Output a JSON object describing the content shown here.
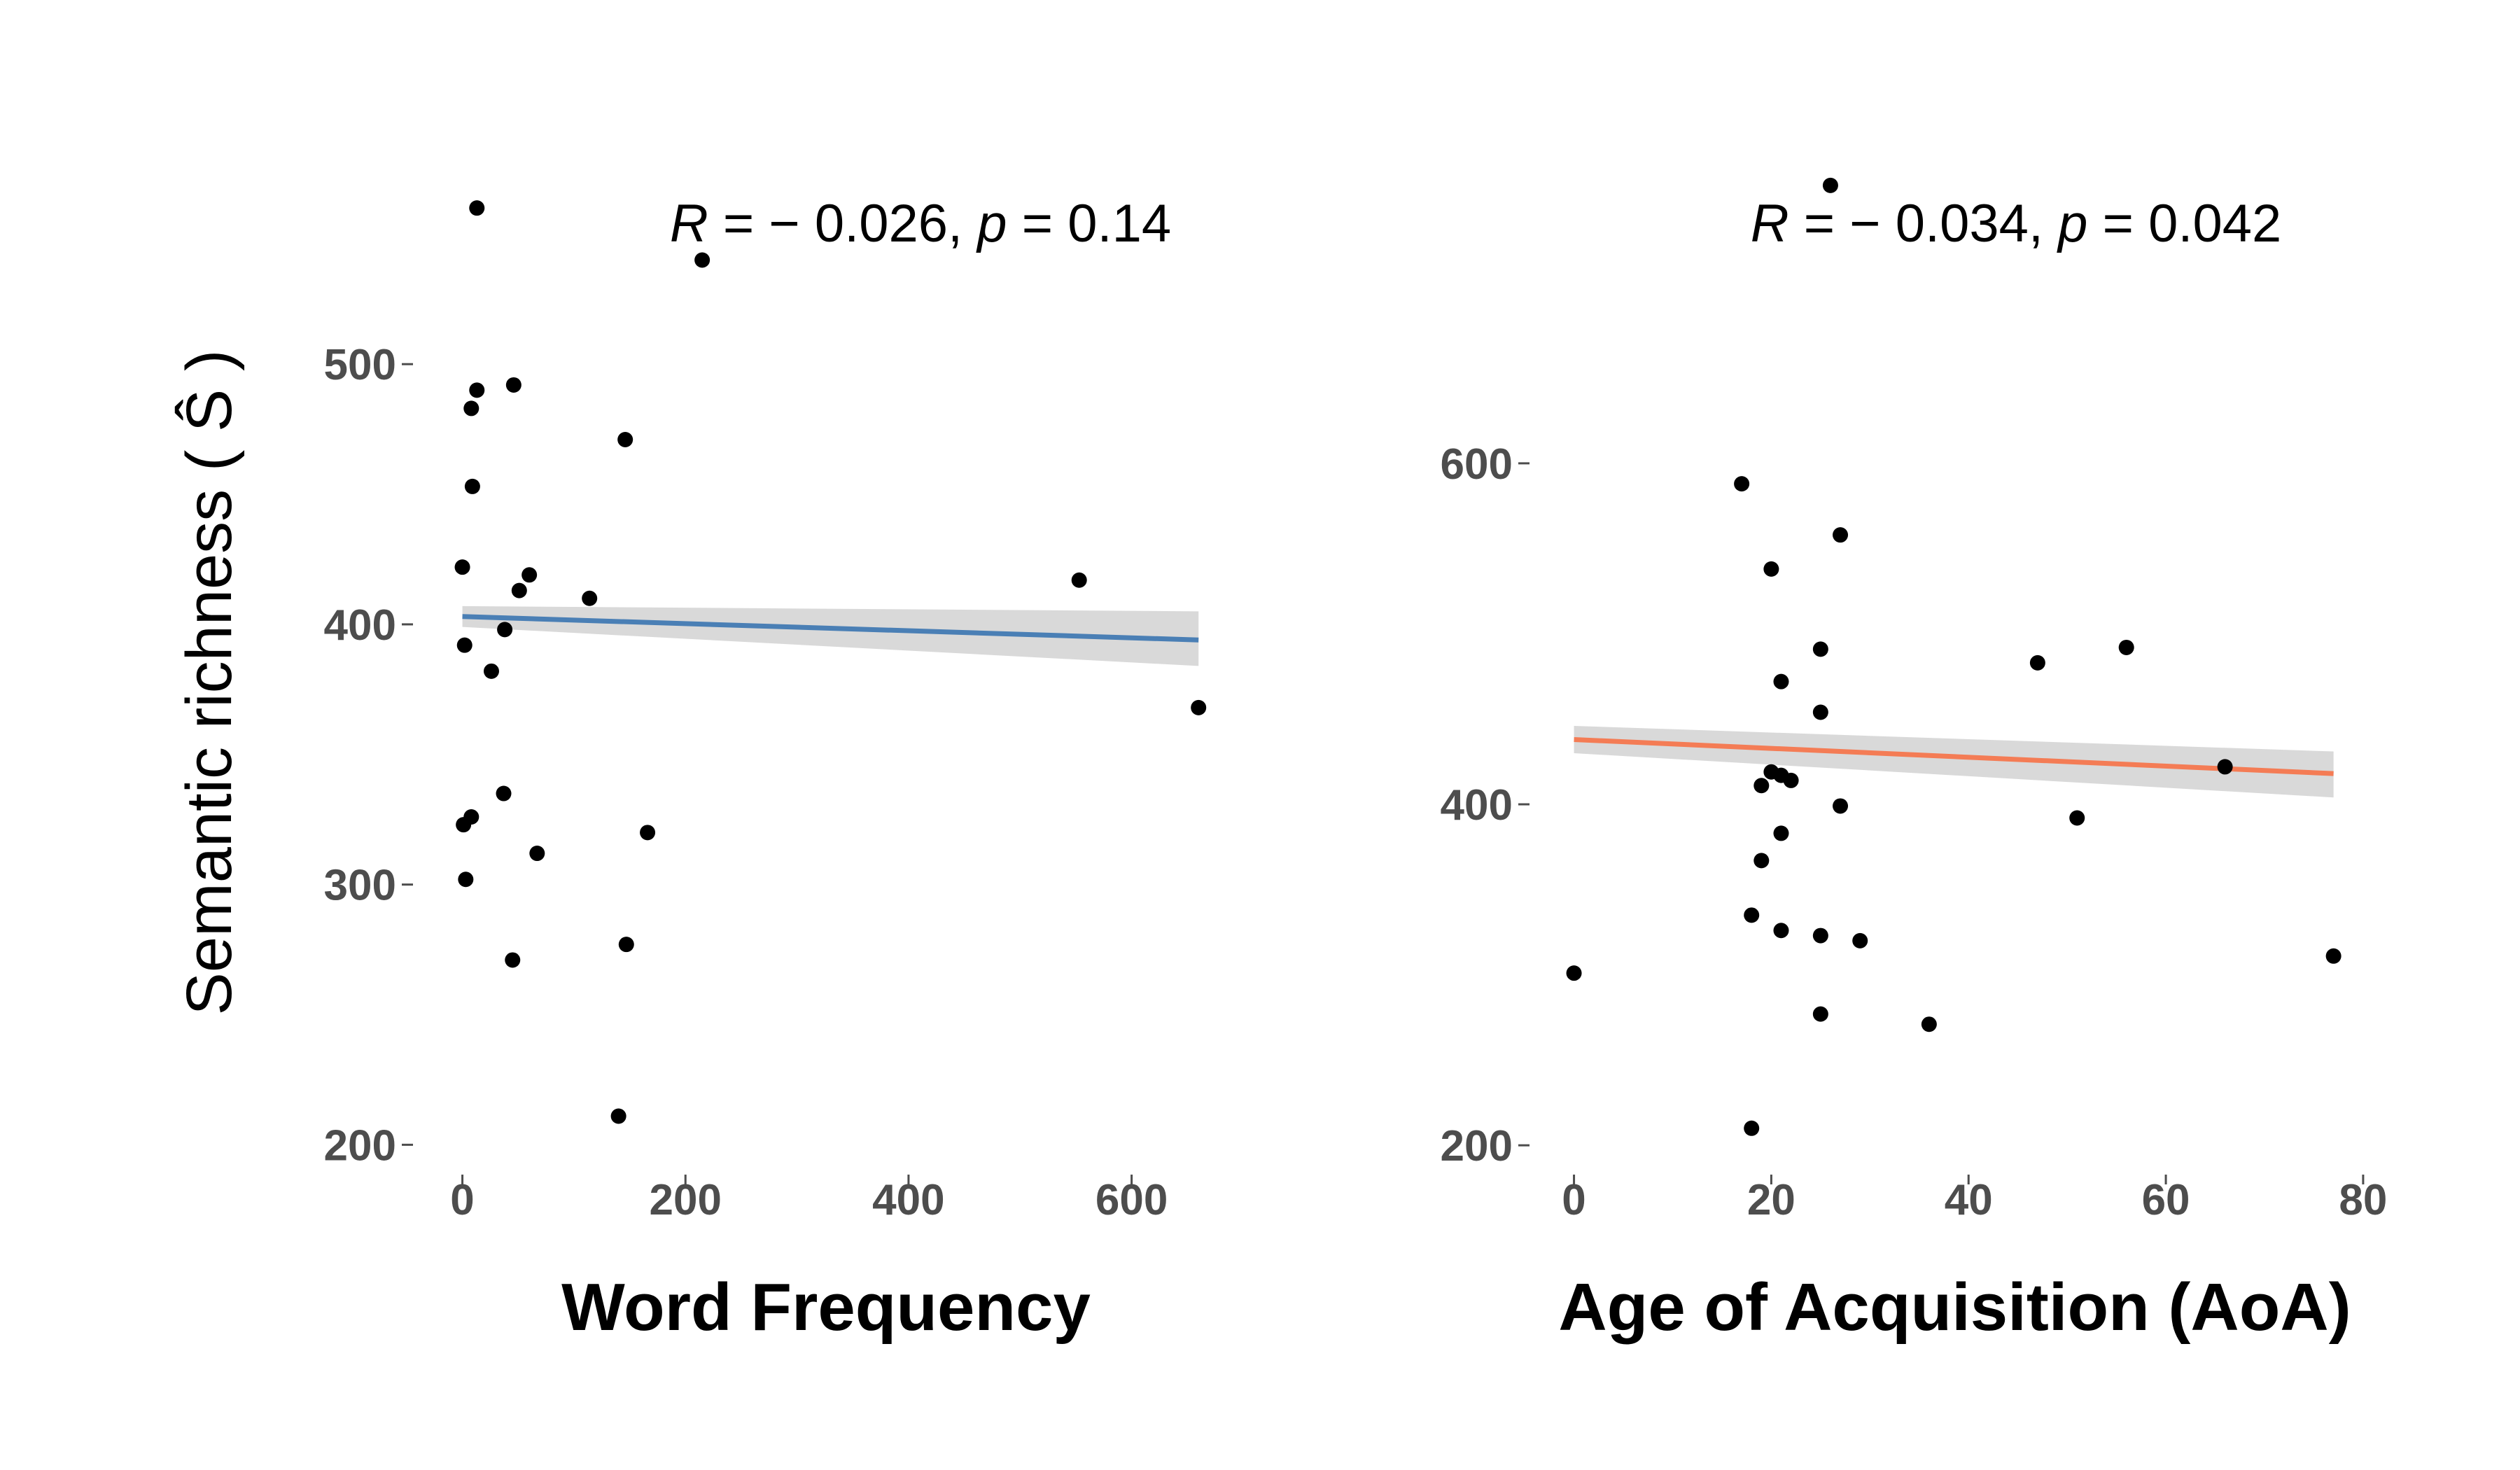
{
  "figure": {
    "ylabel": "Semantic richness ( Ŝ )"
  },
  "chart_data": [
    {
      "type": "scatter",
      "title": "",
      "xlabel": "Word Frequency",
      "ylabel": "Semantic richness ( Ŝ )",
      "xlim": [
        -38,
        690
      ],
      "ylim": [
        188,
        570
      ],
      "xticks": [
        0,
        200,
        400,
        600
      ],
      "yticks": [
        200,
        300,
        400,
        500
      ],
      "grid": false,
      "stat": {
        "r_label": "R",
        "r_value": "= − 0.026,",
        "p_label": "p",
        "p_value": "= 0.14"
      },
      "fit": {
        "x0": 0,
        "x1": 660,
        "y0": 403,
        "y1": 394,
        "ci_lo0": 399,
        "ci_hi0": 407,
        "ci_lo1": 384,
        "ci_hi1": 405,
        "color": "#4a7fb5"
      },
      "points": [
        {
          "x": 13,
          "y": 560
        },
        {
          "x": 215,
          "y": 540
        },
        {
          "x": 13,
          "y": 490
        },
        {
          "x": 46,
          "y": 492
        },
        {
          "x": 8,
          "y": 483
        },
        {
          "x": 146,
          "y": 471
        },
        {
          "x": 9,
          "y": 453
        },
        {
          "x": 0,
          "y": 422
        },
        {
          "x": 60,
          "y": 419
        },
        {
          "x": 51,
          "y": 413
        },
        {
          "x": 114,
          "y": 410
        },
        {
          "x": 553,
          "y": 417
        },
        {
          "x": 38,
          "y": 398
        },
        {
          "x": 2,
          "y": 392
        },
        {
          "x": 26,
          "y": 382
        },
        {
          "x": 660,
          "y": 368
        },
        {
          "x": 37,
          "y": 335
        },
        {
          "x": 8,
          "y": 326
        },
        {
          "x": 1,
          "y": 323
        },
        {
          "x": 166,
          "y": 320
        },
        {
          "x": 67,
          "y": 312
        },
        {
          "x": 3,
          "y": 302
        },
        {
          "x": 147,
          "y": 277
        },
        {
          "x": 45,
          "y": 271
        },
        {
          "x": 140,
          "y": 211
        }
      ]
    },
    {
      "type": "scatter",
      "title": "",
      "xlabel": "Age of Acquisition (AoA)",
      "ylabel": "Semantic richness ( Ŝ )",
      "xlim": [
        -3.8,
        81
      ],
      "ylim": [
        182,
        765
      ],
      "xticks": [
        0,
        20,
        40,
        60,
        80
      ],
      "yticks": [
        200,
        400,
        600
      ],
      "grid": false,
      "stat": {
        "r_label": "R",
        "r_value": "= − 0.034,",
        "p_label": "p",
        "p_value": "= 0.042"
      },
      "fit": {
        "x0": 0,
        "x1": 77,
        "y0": 438,
        "y1": 418,
        "ci_lo0": 430,
        "ci_hi0": 446,
        "ci_lo1": 404,
        "ci_hi1": 431,
        "color": "#f47c55"
      },
      "points": [
        {
          "x": 26,
          "y": 763
        },
        {
          "x": 17,
          "y": 588
        },
        {
          "x": 27,
          "y": 558
        },
        {
          "x": 20,
          "y": 538
        },
        {
          "x": 25,
          "y": 491
        },
        {
          "x": 56,
          "y": 492
        },
        {
          "x": 47,
          "y": 483
        },
        {
          "x": 21,
          "y": 472
        },
        {
          "x": 25,
          "y": 454
        },
        {
          "x": 20,
          "y": 419
        },
        {
          "x": 21,
          "y": 417
        },
        {
          "x": 22,
          "y": 414
        },
        {
          "x": 19,
          "y": 411
        },
        {
          "x": 66,
          "y": 422
        },
        {
          "x": 27,
          "y": 399
        },
        {
          "x": 51,
          "y": 392
        },
        {
          "x": 21,
          "y": 383
        },
        {
          "x": 19,
          "y": 367
        },
        {
          "x": 18,
          "y": 335
        },
        {
          "x": 21,
          "y": 326
        },
        {
          "x": 25,
          "y": 323
        },
        {
          "x": 29,
          "y": 320
        },
        {
          "x": 77,
          "y": 311
        },
        {
          "x": 0,
          "y": 301
        },
        {
          "x": 25,
          "y": 277
        },
        {
          "x": 36,
          "y": 271
        },
        {
          "x": 18,
          "y": 210
        }
      ]
    }
  ]
}
